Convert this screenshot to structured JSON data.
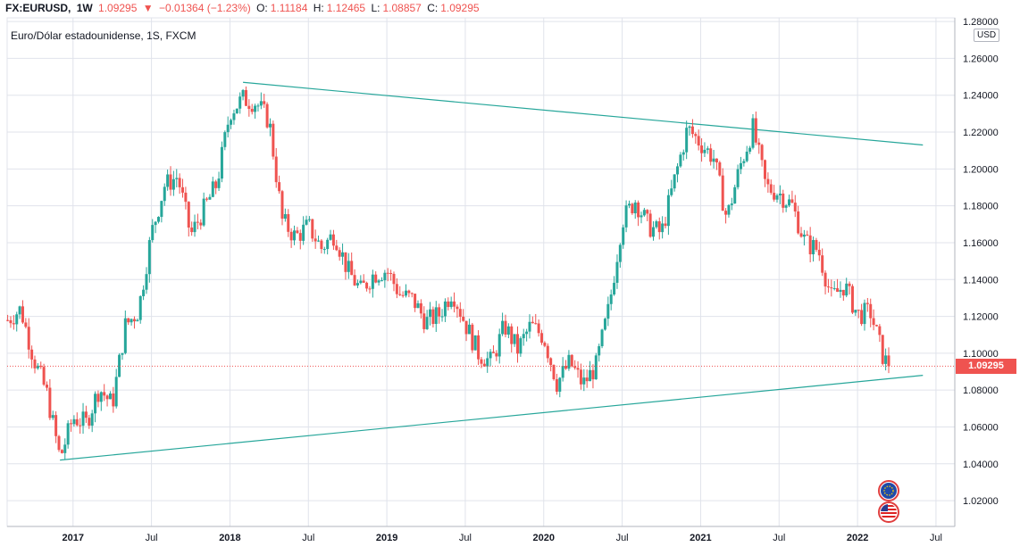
{
  "legend": {
    "symbol": "FX:EURUSD,",
    "interval": "1W",
    "last": "1.09295",
    "change_arrow": "▼",
    "change": "−0.01364 (−1.23%)",
    "o_label": "O:",
    "o_value": "1.11184",
    "h_label": "H:",
    "h_value": "1.12465",
    "l_label": "L:",
    "l_value": "1.08857",
    "c_label": "C:",
    "c_value": "1.09295"
  },
  "subtitle": "Euro/Dólar estadounidense, 1S, FXCM",
  "currency_badge": "USD",
  "price_tag": "1.09295",
  "colors": {
    "up": "#26a69a",
    "down": "#ef5350",
    "trend": "#26a69a",
    "grid": "#e0e3eb"
  },
  "icons": [
    "eu-flag-icon",
    "us-flag-icon"
  ],
  "chart_data": {
    "type": "candlestick",
    "y_ticks": [
      "1.02000",
      "1.04000",
      "1.06000",
      "1.08000",
      "1.10000",
      "1.12000",
      "1.14000",
      "1.16000",
      "1.18000",
      "1.20000",
      "1.22000",
      "1.24000",
      "1.26000",
      "1.28000"
    ],
    "x_ticks": [
      {
        "label": "2017",
        "date": "2017-01",
        "bold": true
      },
      {
        "label": "Jul",
        "date": "2017-07",
        "bold": false
      },
      {
        "label": "2018",
        "date": "2018-01",
        "bold": true
      },
      {
        "label": "Jul",
        "date": "2018-07",
        "bold": false
      },
      {
        "label": "2019",
        "date": "2019-01",
        "bold": true
      },
      {
        "label": "Jul",
        "date": "2019-07",
        "bold": false
      },
      {
        "label": "2020",
        "date": "2020-01",
        "bold": true
      },
      {
        "label": "Jul",
        "date": "2020-07",
        "bold": false
      },
      {
        "label": "2021",
        "date": "2021-01",
        "bold": true
      },
      {
        "label": "Jul",
        "date": "2021-07",
        "bold": false
      },
      {
        "label": "2022",
        "date": "2022-01",
        "bold": true
      },
      {
        "label": "Jul",
        "date": "2022-07",
        "bold": false
      }
    ],
    "ylim": [
      1.006,
      1.282
    ],
    "last_close": 1.09295,
    "trendlines": [
      {
        "from": {
          "date": "2018-02",
          "price": 1.247
        },
        "to": {
          "date": "2022-06",
          "price": 1.213
        }
      },
      {
        "from": {
          "date": "2016-12",
          "price": 1.042
        },
        "to": {
          "date": "2022-06",
          "price": 1.088
        }
      }
    ],
    "weekly_closes": [
      [
        "2016-08",
        1.118
      ],
      [
        "2016-09",
        1.124
      ],
      [
        "2016-10",
        1.097
      ],
      [
        "2016-11",
        1.078
      ],
      [
        "2016-12",
        1.043
      ],
      [
        "2017-01",
        1.065
      ],
      [
        "2017-02",
        1.062
      ],
      [
        "2017-03",
        1.081
      ],
      [
        "2017-04",
        1.072
      ],
      [
        "2017-05",
        1.115
      ],
      [
        "2017-06",
        1.123
      ],
      [
        "2017-07",
        1.165
      ],
      [
        "2017-08",
        1.191
      ],
      [
        "2017-09",
        1.196
      ],
      [
        "2017-10",
        1.164
      ],
      [
        "2017-11",
        1.178
      ],
      [
        "2017-12",
        1.192
      ],
      [
        "2018-01",
        1.231
      ],
      [
        "2018-02",
        1.238
      ],
      [
        "2018-03",
        1.236
      ],
      [
        "2018-04",
        1.226
      ],
      [
        "2018-05",
        1.172
      ],
      [
        "2018-06",
        1.163
      ],
      [
        "2018-07",
        1.169
      ],
      [
        "2018-08",
        1.157
      ],
      [
        "2018-09",
        1.165
      ],
      [
        "2018-10",
        1.145
      ],
      [
        "2018-11",
        1.134
      ],
      [
        "2018-12",
        1.143
      ],
      [
        "2019-01",
        1.145
      ],
      [
        "2019-02",
        1.132
      ],
      [
        "2019-03",
        1.129
      ],
      [
        "2019-04",
        1.117
      ],
      [
        "2019-05",
        1.121
      ],
      [
        "2019-06",
        1.134
      ],
      [
        "2019-07",
        1.116
      ],
      [
        "2019-08",
        1.1
      ],
      [
        "2019-09",
        1.095
      ],
      [
        "2019-10",
        1.115
      ],
      [
        "2019-11",
        1.102
      ],
      [
        "2019-12",
        1.115
      ],
      [
        "2020-01",
        1.109
      ],
      [
        "2020-02",
        1.084
      ],
      [
        "2020-03",
        1.095
      ],
      [
        "2020-04",
        1.083
      ],
      [
        "2020-05",
        1.093
      ],
      [
        "2020-06",
        1.125
      ],
      [
        "2020-07",
        1.172
      ],
      [
        "2020-08",
        1.183
      ],
      [
        "2020-09",
        1.169
      ],
      [
        "2020-10",
        1.165
      ],
      [
        "2020-11",
        1.194
      ],
      [
        "2020-12",
        1.222
      ],
      [
        "2021-01",
        1.214
      ],
      [
        "2021-02",
        1.206
      ],
      [
        "2021-03",
        1.173
      ],
      [
        "2021-04",
        1.201
      ],
      [
        "2021-05",
        1.222
      ],
      [
        "2021-06",
        1.19
      ],
      [
        "2021-07",
        1.187
      ],
      [
        "2021-08",
        1.18
      ],
      [
        "2021-09",
        1.16
      ],
      [
        "2021-10",
        1.156
      ],
      [
        "2021-11",
        1.13
      ],
      [
        "2021-12",
        1.137
      ],
      [
        "2022-01",
        1.121
      ],
      [
        "2022-02",
        1.122
      ],
      [
        "2022-03",
        1.097
      ],
      [
        "2022-03",
        1.093
      ]
    ]
  }
}
